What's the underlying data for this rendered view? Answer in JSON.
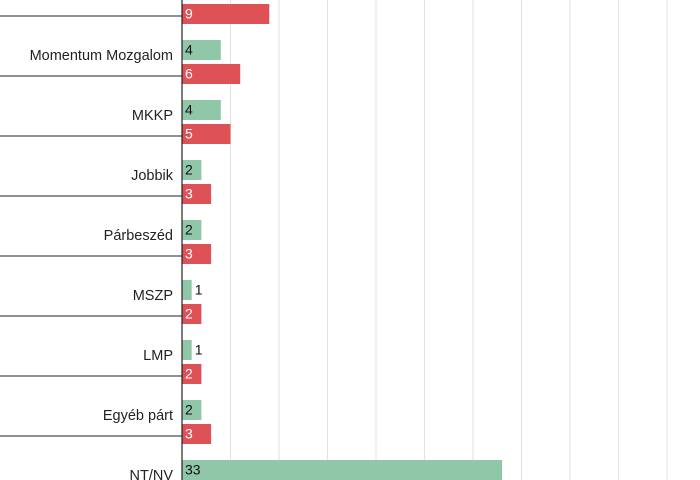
{
  "chart_data": {
    "type": "bar",
    "orientation": "horizontal",
    "categories": [
      "",
      "Momentum Mozgalom",
      "MKKP",
      "Jobbik",
      "Párbeszéd",
      "MSZP",
      "LMP",
      "Egyéb párt",
      "NT/NV"
    ],
    "series": [
      {
        "values": [
          null,
          4,
          4,
          2,
          2,
          1,
          1,
          2,
          33
        ]
      },
      {
        "values": [
          9,
          6,
          5,
          3,
          3,
          2,
          2,
          3,
          null
        ]
      }
    ],
    "xlim": [
      0,
      53
    ],
    "grid": true,
    "colors": {
      "series0": "#8fc7a8",
      "series1": "#de5157"
    }
  }
}
